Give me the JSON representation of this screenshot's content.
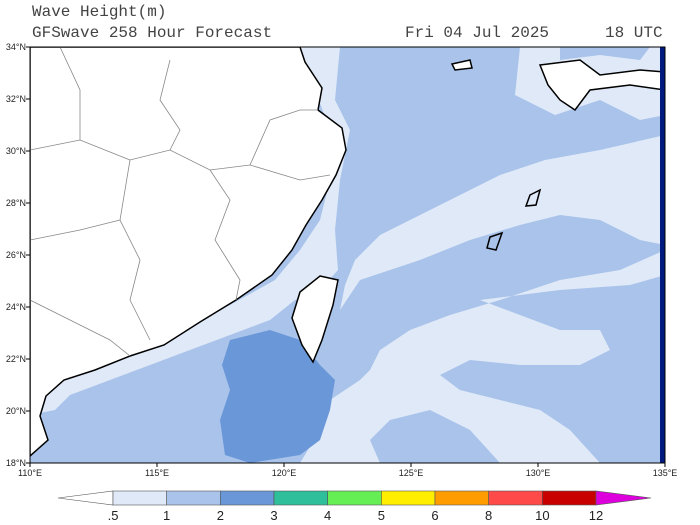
{
  "map": {
    "title": "Wave Height(m)",
    "subtitle": "GFSwave 258 Hour Forecast",
    "date": "Fri 04 Jul 2025",
    "time": "18 UTC",
    "lon_range": [
      110,
      135
    ],
    "lat_range": [
      18,
      34
    ],
    "lon_ticks": [
      {
        "value": 110,
        "label": "110°E"
      },
      {
        "value": 115,
        "label": "115°E"
      },
      {
        "value": 120,
        "label": "120°E"
      },
      {
        "value": 125,
        "label": "125°E"
      },
      {
        "value": 130,
        "label": "130°E"
      },
      {
        "value": 135,
        "label": "135°E"
      }
    ],
    "lat_ticks": [
      {
        "value": 18,
        "label": "18°N"
      },
      {
        "value": 20,
        "label": "20°N"
      },
      {
        "value": 22,
        "label": "22°N"
      },
      {
        "value": 24,
        "label": "24°N"
      },
      {
        "value": 26,
        "label": "26°N"
      },
      {
        "value": 28,
        "label": "28°N"
      },
      {
        "value": 30,
        "label": "30°N"
      },
      {
        "value": 32,
        "label": "32°N"
      },
      {
        "value": 34,
        "label": "34°N"
      }
    ],
    "colorbar": {
      "levels": [
        {
          "value": 0.5,
          "label": ".5"
        },
        1,
        2,
        3,
        4,
        5,
        6,
        8,
        10,
        12
      ],
      "colors": [
        "#ffffff",
        "#dfe9f8",
        "#a9c3ea",
        "#6a97d8",
        "#2fbf9a",
        "#66ee55",
        "#ffee00",
        "#ff9d00",
        "#ff4a4a",
        "#c80000",
        "#dd00dd"
      ]
    }
  }
}
